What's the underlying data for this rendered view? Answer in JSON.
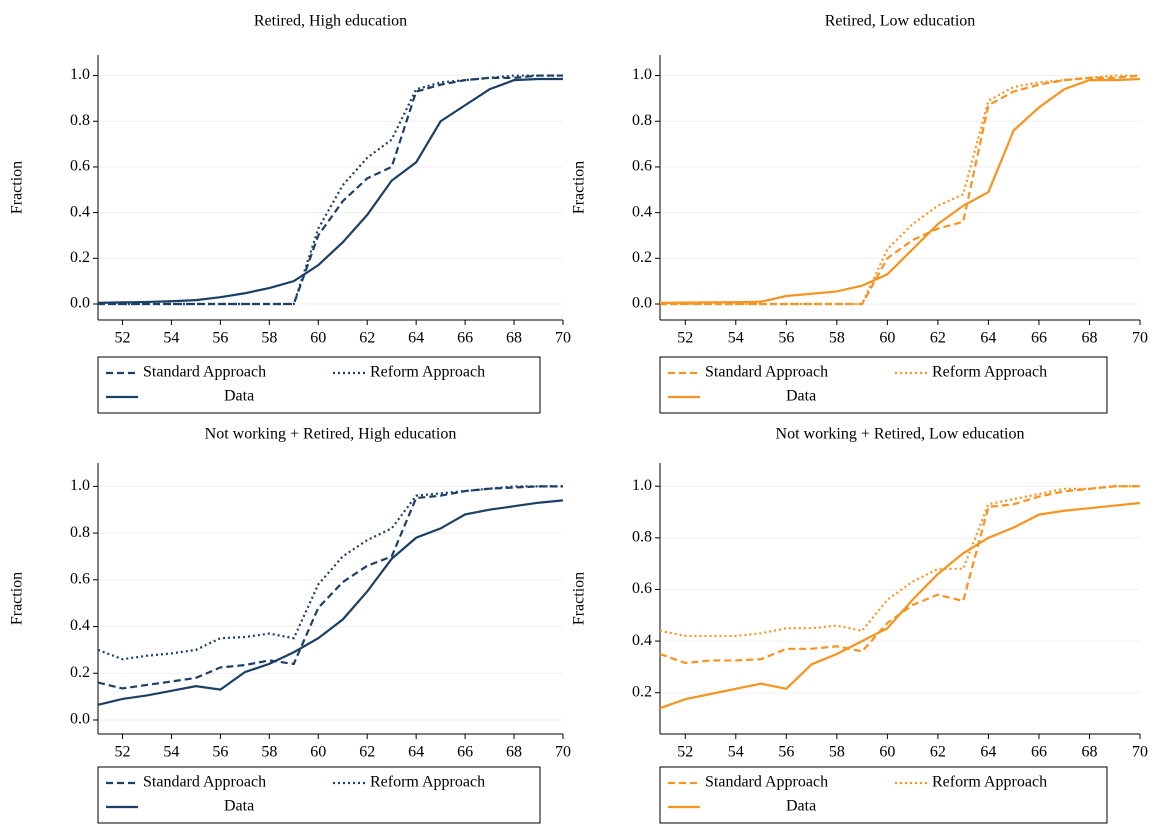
{
  "chart_data": [
    {
      "type": "line",
      "title": "Retired, High education",
      "ylabel": "Fraction",
      "x": [
        51,
        52,
        53,
        54,
        55,
        56,
        57,
        58,
        59,
        60,
        61,
        62,
        63,
        64,
        65,
        66,
        67,
        68,
        69,
        70
      ],
      "xlim": [
        51,
        70
      ],
      "xticks": [
        52,
        54,
        56,
        58,
        60,
        62,
        64,
        66,
        68,
        70
      ],
      "ylim": [
        -0.07,
        1.09
      ],
      "yticks": [
        {
          "value": 0,
          "label": "0.0"
        },
        0.2,
        0.4,
        0.6,
        0.8,
        {
          "value": 1,
          "label": "1.0"
        }
      ],
      "grid": true,
      "legend": "bottom",
      "series": [
        {
          "name": "Standard Approach",
          "color": "#1b3f66",
          "style": "dashed",
          "values": [
            0,
            0,
            0,
            0,
            0,
            0,
            0,
            0,
            0,
            0.3,
            0.45,
            0.55,
            0.6,
            0.93,
            0.96,
            0.98,
            0.99,
            0.99,
            1.0,
            1.0
          ]
        },
        {
          "name": "Reform Approach",
          "color": "#1b3f66",
          "style": "dotted",
          "values": [
            0,
            0,
            0,
            0,
            0,
            0,
            0,
            0,
            0,
            0.33,
            0.52,
            0.64,
            0.72,
            0.94,
            0.97,
            0.98,
            0.99,
            1.0,
            1.0,
            1.0
          ]
        },
        {
          "name": "Data",
          "color": "#1b3f66",
          "style": "solid",
          "values": [
            0.005,
            0.007,
            0.009,
            0.012,
            0.017,
            0.03,
            0.047,
            0.07,
            0.1,
            0.17,
            0.27,
            0.39,
            0.54,
            0.62,
            0.8,
            0.87,
            0.94,
            0.98,
            0.985,
            0.985
          ]
        }
      ]
    },
    {
      "type": "line",
      "title": "Retired, Low education",
      "ylabel": "Fraction",
      "x": [
        51,
        52,
        53,
        54,
        55,
        56,
        57,
        58,
        59,
        60,
        61,
        62,
        63,
        64,
        65,
        66,
        67,
        68,
        69,
        70
      ],
      "xlim": [
        51,
        70
      ],
      "xticks": [
        52,
        54,
        56,
        58,
        60,
        62,
        64,
        66,
        68,
        70
      ],
      "ylim": [
        -0.07,
        1.09
      ],
      "yticks": [
        {
          "value": 0,
          "label": "0.0"
        },
        0.2,
        0.4,
        0.6,
        0.8,
        {
          "value": 1,
          "label": "1.0"
        }
      ],
      "grid": true,
      "legend": "bottom",
      "series": [
        {
          "name": "Standard Approach",
          "color": "#f7931e",
          "style": "dashed",
          "values": [
            0,
            0,
            0,
            0,
            0,
            0,
            0,
            0,
            0,
            0.2,
            0.28,
            0.33,
            0.36,
            0.87,
            0.93,
            0.96,
            0.98,
            0.99,
            0.99,
            1.0
          ]
        },
        {
          "name": "Reform Approach",
          "color": "#f7931e",
          "style": "dotted",
          "values": [
            0,
            0,
            0,
            0,
            0,
            0,
            0,
            0,
            0,
            0.24,
            0.35,
            0.43,
            0.48,
            0.89,
            0.95,
            0.97,
            0.98,
            0.99,
            1.0,
            1.0
          ]
        },
        {
          "name": "Data",
          "color": "#f7931e",
          "style": "solid",
          "values": [
            0.005,
            0.006,
            0.007,
            0.008,
            0.01,
            0.035,
            0.045,
            0.055,
            0.08,
            0.13,
            0.24,
            0.35,
            0.43,
            0.49,
            0.76,
            0.86,
            0.94,
            0.98,
            0.98,
            0.985
          ]
        }
      ]
    },
    {
      "type": "line",
      "title": "Not working + Retired, High education",
      "ylabel": "Fraction",
      "x": [
        51,
        52,
        53,
        54,
        55,
        56,
        57,
        58,
        59,
        60,
        61,
        62,
        63,
        64,
        65,
        66,
        67,
        68,
        69,
        70
      ],
      "xlim": [
        51,
        70
      ],
      "xticks": [
        52,
        54,
        56,
        58,
        60,
        62,
        64,
        66,
        68,
        70
      ],
      "ylim": [
        -0.06,
        1.1
      ],
      "yticks": [
        {
          "value": 0,
          "label": "0.0"
        },
        0.2,
        0.4,
        0.6,
        0.8,
        {
          "value": 1,
          "label": "1.0"
        }
      ],
      "grid": true,
      "legend": "bottom",
      "series": [
        {
          "name": "Standard Approach",
          "color": "#1b3f66",
          "style": "dashed",
          "values": [
            0.16,
            0.135,
            0.15,
            0.165,
            0.18,
            0.225,
            0.235,
            0.255,
            0.24,
            0.48,
            0.59,
            0.66,
            0.7,
            0.95,
            0.96,
            0.98,
            0.99,
            0.995,
            1.0,
            1.0
          ]
        },
        {
          "name": "Reform Approach",
          "color": "#1b3f66",
          "style": "dotted",
          "values": [
            0.3,
            0.26,
            0.275,
            0.285,
            0.3,
            0.35,
            0.355,
            0.37,
            0.35,
            0.58,
            0.7,
            0.77,
            0.82,
            0.96,
            0.97,
            0.98,
            0.99,
            1.0,
            1.0,
            1.0
          ]
        },
        {
          "name": "Data",
          "color": "#1b3f66",
          "style": "solid",
          "values": [
            0.065,
            0.09,
            0.105,
            0.125,
            0.145,
            0.13,
            0.205,
            0.24,
            0.29,
            0.35,
            0.43,
            0.55,
            0.69,
            0.78,
            0.82,
            0.88,
            0.9,
            0.915,
            0.93,
            0.94
          ]
        }
      ]
    },
    {
      "type": "line",
      "title": "Not working + Retired, Low education",
      "ylabel": "Fraction",
      "x": [
        51,
        52,
        53,
        54,
        55,
        56,
        57,
        58,
        59,
        60,
        61,
        62,
        63,
        64,
        65,
        66,
        67,
        68,
        69,
        70
      ],
      "xlim": [
        51,
        70
      ],
      "xticks": [
        52,
        54,
        56,
        58,
        60,
        62,
        64,
        66,
        68,
        70
      ],
      "ylim": [
        0.04,
        1.09
      ],
      "yticks": [
        0.2,
        0.4,
        0.6,
        0.8,
        {
          "value": 1,
          "label": "1.0"
        }
      ],
      "grid": true,
      "legend": "bottom",
      "series": [
        {
          "name": "Standard Approach",
          "color": "#f7931e",
          "style": "dashed",
          "values": [
            0.35,
            0.315,
            0.325,
            0.325,
            0.33,
            0.37,
            0.37,
            0.38,
            0.36,
            0.47,
            0.54,
            0.58,
            0.555,
            0.92,
            0.93,
            0.96,
            0.98,
            0.99,
            1.0,
            1.0
          ]
        },
        {
          "name": "Reform Approach",
          "color": "#f7931e",
          "style": "dotted",
          "values": [
            0.44,
            0.42,
            0.42,
            0.42,
            0.43,
            0.45,
            0.45,
            0.46,
            0.44,
            0.56,
            0.63,
            0.68,
            0.68,
            0.93,
            0.95,
            0.97,
            0.99,
            0.99,
            1.0,
            1.0
          ]
        },
        {
          "name": "Data",
          "color": "#f7931e",
          "style": "solid",
          "values": [
            0.14,
            0.175,
            0.195,
            0.215,
            0.235,
            0.215,
            0.31,
            0.35,
            0.4,
            0.45,
            0.56,
            0.66,
            0.74,
            0.8,
            0.84,
            0.89,
            0.905,
            0.915,
            0.925,
            0.935
          ]
        }
      ]
    }
  ]
}
